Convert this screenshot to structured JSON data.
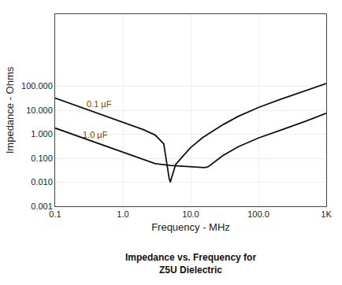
{
  "chart_data": {
    "type": "line",
    "title": "Impedance vs. Frequency for\nZ5U Dielectric",
    "x_label": "Frequency - MHz",
    "y_label": "Impedance - Ohms",
    "log": true,
    "grid": true,
    "xlim": [
      0.1,
      1000
    ],
    "ylim": [
      0.001,
      100000
    ],
    "xticks": [
      0.1,
      {
        "value": 1.0,
        "label": "1.0"
      },
      {
        "value": 10.0,
        "label": "10.0"
      },
      {
        "value": 100.0,
        "label": "100.0"
      },
      {
        "value": 1000.0,
        "label": "1K"
      }
    ],
    "yticks": [
      0.001,
      {
        "value": 0.01,
        "label": "0.010"
      },
      {
        "value": 0.1,
        "label": "0.100"
      },
      {
        "value": 1.0,
        "label": "1.000"
      },
      {
        "value": 10.0,
        "label": "10.000"
      },
      {
        "value": 100.0,
        "label": "100.000"
      }
    ],
    "series": [
      {
        "color": "#111111",
        "x": [
          0.1,
          0.3,
          0.5,
          1.0,
          2.0,
          3.0,
          4.0,
          4.8,
          5.0,
          5.2,
          6.0,
          8.0,
          10.0,
          15.0,
          20.0,
          30.0,
          50.0,
          100.0,
          200.0,
          500.0,
          1000.0
        ],
        "values": [
          32.0,
          10.5,
          6.2,
          3.1,
          1.55,
          0.92,
          0.4,
          0.015,
          0.01,
          0.015,
          0.055,
          0.14,
          0.28,
          0.72,
          1.2,
          2.5,
          5.5,
          13.0,
          27.0,
          65.0,
          130.0
        ]
      },
      {
        "color": "#111111",
        "x": [
          0.1,
          0.3,
          0.5,
          1.0,
          2.0,
          3.0,
          5.0,
          8.0,
          10.0,
          12.0,
          14.0,
          15.0,
          16.0,
          18.0,
          20.0,
          30.0,
          50.0,
          100.0,
          200.0,
          500.0,
          1000.0
        ],
        "values": [
          1.8,
          0.6,
          0.36,
          0.18,
          0.09,
          0.06,
          0.05,
          0.046,
          0.044,
          0.042,
          0.041,
          0.04,
          0.041,
          0.044,
          0.055,
          0.13,
          0.3,
          0.7,
          1.4,
          3.5,
          7.5
        ]
      }
    ],
    "annotations": [
      {
        "text": "0.1 µF",
        "x": 0.28,
        "y": 18.0,
        "color": "#7B3F00"
      },
      {
        "text": "1.0 µF",
        "x": 0.24,
        "y": 1.0,
        "color": "#7B3F00"
      }
    ]
  }
}
